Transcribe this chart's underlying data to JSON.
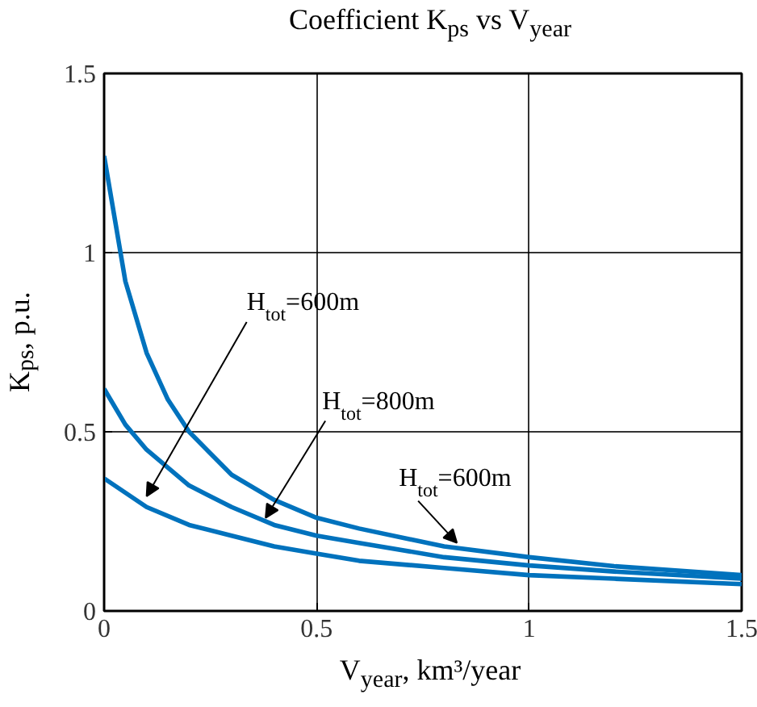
{
  "chart_data": {
    "type": "line",
    "title": "Coefficient K$_{ps}$ vs V$_{year}$",
    "xlabel": "V$_{year}$, km³/year",
    "ylabel": "K$_{ps}$, p.u.",
    "series": [
      {
        "color": "#0072bd",
        "x": [
          0,
          0.05,
          0.1,
          0.15,
          0.2,
          0.3,
          0.4,
          0.5,
          0.6,
          0.8,
          1.0,
          1.2,
          1.5
        ],
        "values": [
          1.27,
          0.92,
          0.72,
          0.59,
          0.5,
          0.38,
          0.31,
          0.26,
          0.23,
          0.18,
          0.15,
          0.125,
          0.1
        ]
      },
      {
        "color": "#0072bd",
        "x": [
          0,
          0.05,
          0.1,
          0.2,
          0.3,
          0.4,
          0.5,
          0.6,
          0.8,
          1.0,
          1.2,
          1.5
        ],
        "values": [
          0.62,
          0.52,
          0.45,
          0.35,
          0.29,
          0.24,
          0.21,
          0.19,
          0.15,
          0.127,
          0.11,
          0.09
        ]
      },
      {
        "color": "#0072bd",
        "x": [
          0,
          0.1,
          0.2,
          0.3,
          0.4,
          0.5,
          0.6,
          0.8,
          1.0,
          1.2,
          1.5
        ],
        "values": [
          0.37,
          0.29,
          0.24,
          0.21,
          0.18,
          0.16,
          0.14,
          0.12,
          0.1,
          0.09,
          0.075
        ]
      }
    ],
    "annotations": [
      {
        "text": "H$_{tot}$=600m",
        "x": 0.1,
        "y": 0.32
      },
      {
        "text": "H$_{tot}$=800m",
        "x": 0.38,
        "y": 0.26
      },
      {
        "text": "H$_{tot}$=600m",
        "x": 0.83,
        "y": 0.19
      }
    ],
    "xlim": [
      0,
      1.5
    ],
    "ylim": [
      0,
      1.5
    ],
    "xticks": [
      0,
      0.5,
      1,
      1.5
    ],
    "yticks": [
      0,
      0.5,
      1,
      1.5
    ],
    "grid": true,
    "line_style": "solid",
    "marker": "none"
  }
}
